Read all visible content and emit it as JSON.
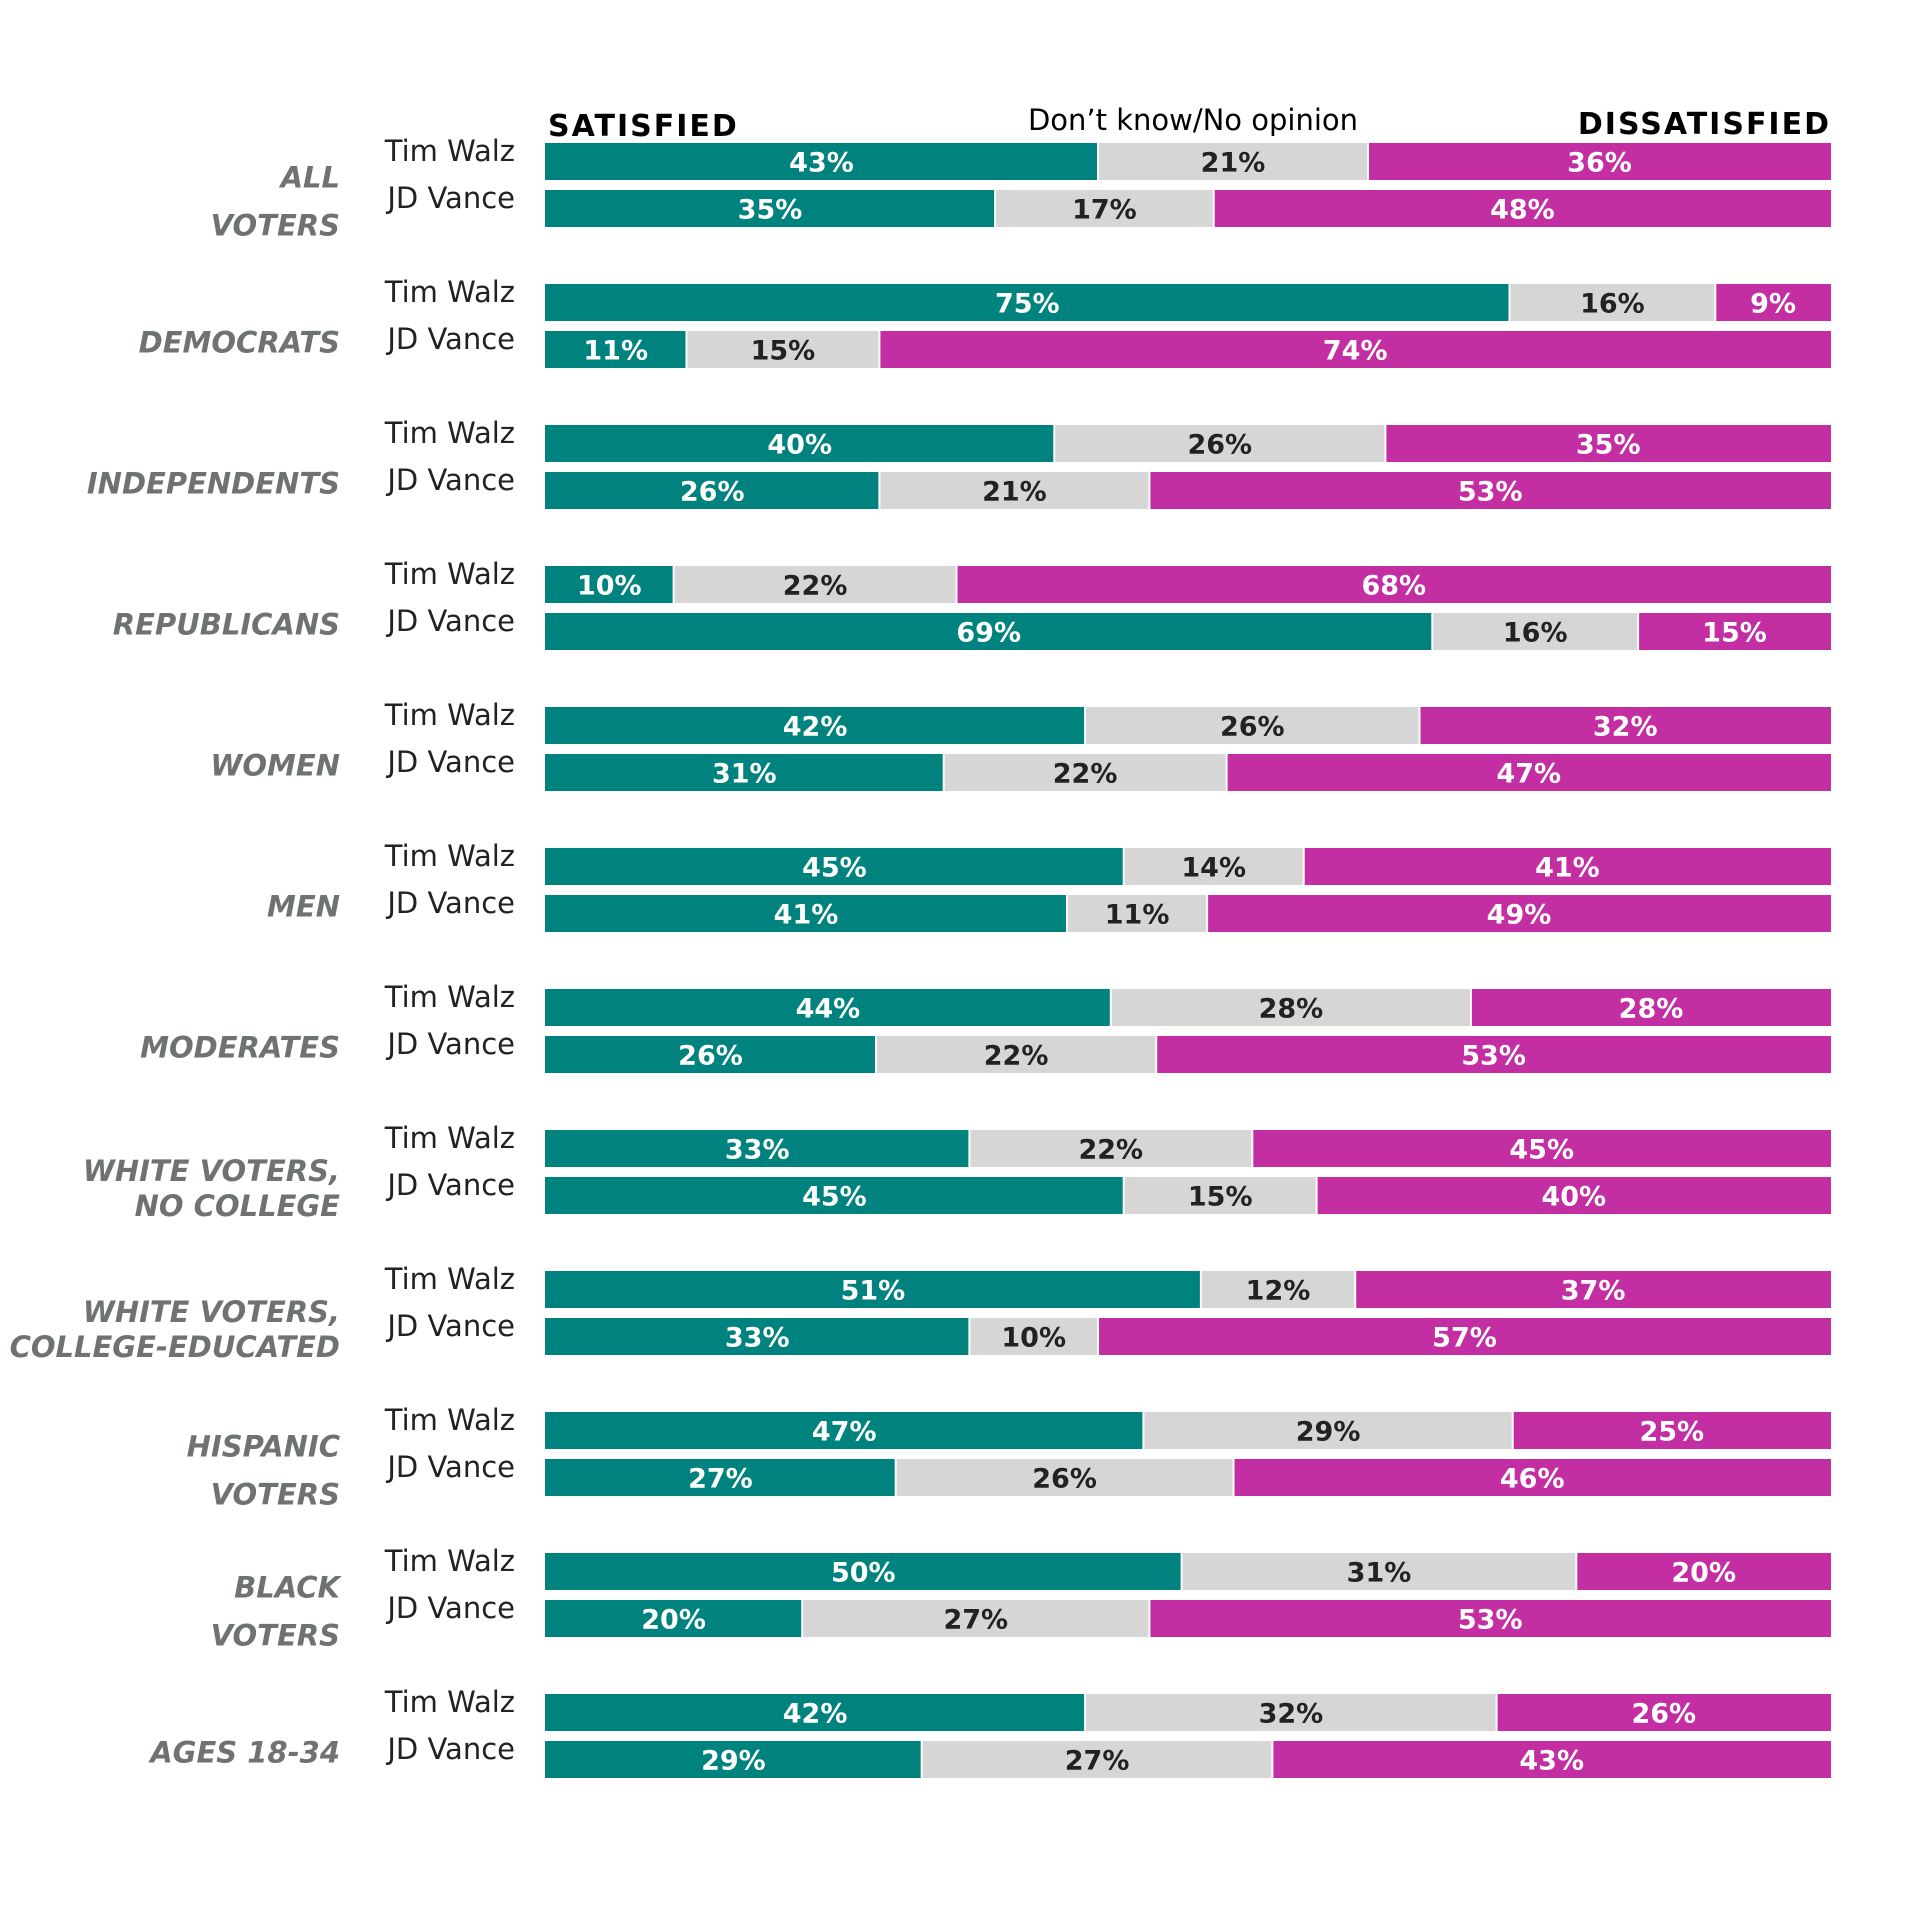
{
  "legend": {
    "satisfied": "SATISFIED",
    "dont_know": "Don’t know/No opinion",
    "dissatisfied": "DISSATISFIED"
  },
  "colors": {
    "satisfied": "#00827f",
    "dont_know": "#d6d6d6",
    "dissatisfied": "#c42ea3",
    "group_label": "#6e7370",
    "dark_text": "#222222"
  },
  "chart_data": {
    "type": "bar",
    "orientation": "horizontal",
    "stacked": true,
    "normalized": true,
    "series_names": [
      "SATISFIED",
      "Don’t know/No opinion",
      "DISSATISFIED"
    ],
    "legend_position": "top",
    "groups": [
      {
        "label_lines": [
          "ALL",
          "VOTERS"
        ],
        "rows": [
          {
            "name": "Tim Walz",
            "values": [
              43,
              21,
              36
            ]
          },
          {
            "name": "JD Vance",
            "values": [
              35,
              17,
              48
            ]
          }
        ]
      },
      {
        "label_lines": [
          "DEMOCRATS"
        ],
        "rows": [
          {
            "name": "Tim Walz",
            "values": [
              75,
              16,
              9
            ]
          },
          {
            "name": "JD Vance",
            "values": [
              11,
              15,
              74
            ]
          }
        ]
      },
      {
        "label_lines": [
          "INDEPENDENTS"
        ],
        "rows": [
          {
            "name": "Tim Walz",
            "values": [
              40,
              26,
              35
            ]
          },
          {
            "name": "JD Vance",
            "values": [
              26,
              21,
              53
            ]
          }
        ]
      },
      {
        "label_lines": [
          "REPUBLICANS"
        ],
        "rows": [
          {
            "name": "Tim Walz",
            "values": [
              10,
              22,
              68
            ]
          },
          {
            "name": "JD Vance",
            "values": [
              69,
              16,
              15
            ]
          }
        ]
      },
      {
        "label_lines": [
          "WOMEN"
        ],
        "rows": [
          {
            "name": "Tim Walz",
            "values": [
              42,
              26,
              32
            ]
          },
          {
            "name": "JD Vance",
            "values": [
              31,
              22,
              47
            ]
          }
        ]
      },
      {
        "label_lines": [
          "MEN"
        ],
        "rows": [
          {
            "name": "Tim Walz",
            "values": [
              45,
              14,
              41
            ]
          },
          {
            "name": "JD Vance",
            "values": [
              41,
              11,
              49
            ]
          }
        ]
      },
      {
        "label_lines": [
          "MODERATES"
        ],
        "rows": [
          {
            "name": "Tim Walz",
            "values": [
              44,
              28,
              28
            ]
          },
          {
            "name": "JD Vance",
            "values": [
              26,
              22,
              53
            ]
          }
        ]
      },
      {
        "label_lines": [
          "WHITE VOTERS,",
          "NO COLLEGE"
        ],
        "rows": [
          {
            "name": "Tim Walz",
            "values": [
              33,
              22,
              45
            ]
          },
          {
            "name": "JD Vance",
            "values": [
              45,
              15,
              40
            ]
          }
        ]
      },
      {
        "label_lines": [
          "WHITE VOTERS,",
          "COLLEGE-EDUCATED"
        ],
        "rows": [
          {
            "name": "Tim Walz",
            "values": [
              51,
              12,
              37
            ]
          },
          {
            "name": "JD Vance",
            "values": [
              33,
              10,
              57
            ]
          }
        ]
      },
      {
        "label_lines": [
          "HISPANIC",
          "VOTERS"
        ],
        "rows": [
          {
            "name": "Tim Walz",
            "values": [
              47,
              29,
              25
            ]
          },
          {
            "name": "JD Vance",
            "values": [
              27,
              26,
              46
            ]
          }
        ]
      },
      {
        "label_lines": [
          "BLACK",
          "VOTERS"
        ],
        "rows": [
          {
            "name": "Tim Walz",
            "values": [
              50,
              31,
              20
            ]
          },
          {
            "name": "JD Vance",
            "values": [
              20,
              27,
              53
            ]
          }
        ]
      },
      {
        "label_lines": [
          "AGES 18-34"
        ],
        "rows": [
          {
            "name": "Tim Walz",
            "values": [
              42,
              32,
              26
            ]
          },
          {
            "name": "JD Vance",
            "values": [
              29,
              27,
              43
            ]
          }
        ]
      }
    ]
  }
}
